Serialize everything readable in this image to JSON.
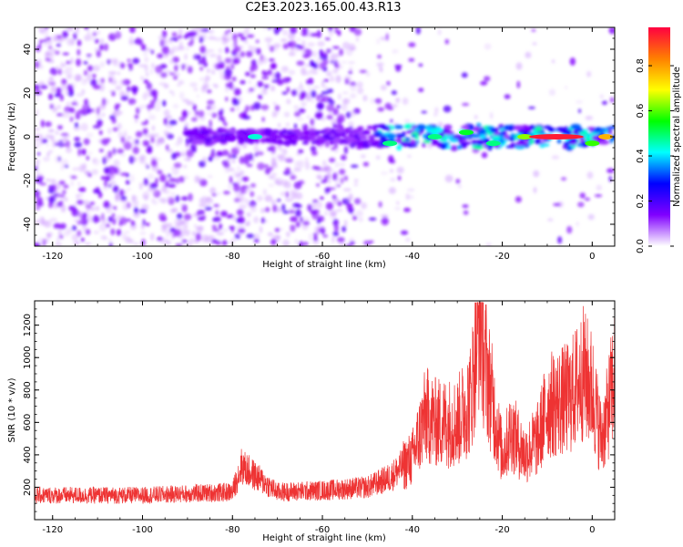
{
  "title": "C2E3.2023.165.00.43.R13",
  "chart_data": [
    {
      "type": "heatmap",
      "xlabel": "Height of straight line (km)",
      "ylabel": "Frequency (Hz)",
      "xlim": [
        -124,
        5
      ],
      "ylim": [
        -50,
        50
      ],
      "xticks": [
        "-120",
        "-100",
        "-80",
        "-60",
        "-40",
        "-20",
        "0"
      ],
      "yticks": [
        "-40",
        "-20",
        "0",
        "20",
        "40"
      ],
      "colorbar": {
        "label": "Normalized spectral amplitude",
        "range": [
          0,
          0.97
        ],
        "ticks": [
          "0.0",
          "0.2",
          "0.4",
          "0.6",
          "0.8"
        ],
        "colormap": [
          "#ffffff",
          "#8000ff",
          "#0000ff",
          "#00ffff",
          "#00ff00",
          "#ffff00",
          "#ff8000",
          "#ff0040"
        ]
      },
      "ridge": [
        {
          "x": -75,
          "y": 0,
          "amplitude": 0.45
        },
        {
          "x": -45,
          "y": -3,
          "amplitude": 0.5
        },
        {
          "x": -35,
          "y": 0,
          "amplitude": 0.5
        },
        {
          "x": -28,
          "y": 2,
          "amplitude": 0.55
        },
        {
          "x": -22,
          "y": -3,
          "amplitude": 0.5
        },
        {
          "x": -15,
          "y": 0,
          "amplitude": 0.65
        },
        {
          "x": -8,
          "y": 0,
          "amplitude": 0.97
        },
        {
          "x": 0,
          "y": -3,
          "amplitude": 0.6
        },
        {
          "x": 3,
          "y": 0,
          "amplitude": 0.8
        }
      ],
      "grid": false
    },
    {
      "type": "line",
      "xlabel": "Height of straight line (km)",
      "ylabel": "SNR (10 * v/v)",
      "xlim": [
        -124,
        5
      ],
      "ylim": [
        0,
        1350
      ],
      "xticks": [
        "-120",
        "-100",
        "-80",
        "-60",
        "-40",
        "-20",
        "0"
      ],
      "yticks": [
        "200",
        "400",
        "600",
        "800",
        "1000",
        "1200"
      ],
      "color": "#ee3333",
      "series": [
        {
          "x": [
            -124,
            -110,
            -100,
            -90,
            -80,
            -78,
            -70,
            -60,
            -50,
            -45,
            -40,
            -37,
            -35,
            -30,
            -27,
            -25,
            -24,
            -20,
            -18,
            -15,
            -12,
            -10,
            -5,
            -2,
            0,
            2,
            3,
            5
          ],
          "y": [
            150,
            150,
            150,
            160,
            170,
            330,
            170,
            180,
            200,
            260,
            380,
            650,
            600,
            600,
            750,
            1300,
            1000,
            400,
            550,
            400,
            500,
            700,
            750,
            900,
            800,
            500,
            600,
            900
          ]
        }
      ],
      "grid": false
    }
  ]
}
